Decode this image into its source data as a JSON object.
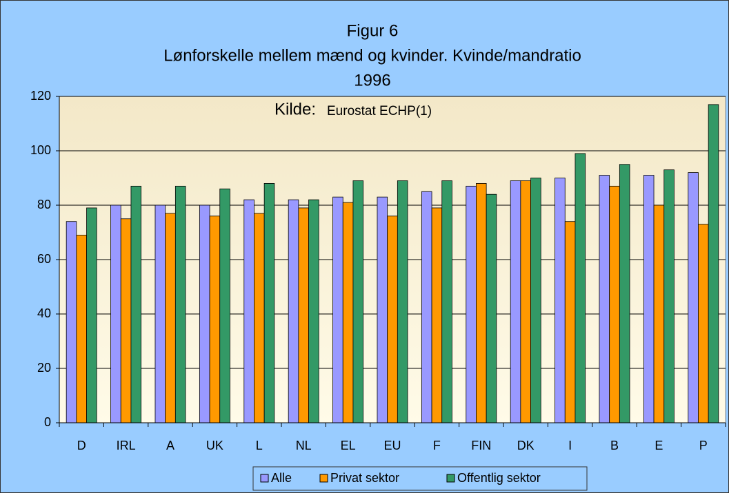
{
  "chart_data": {
    "type": "bar",
    "title": [
      "Figur 6",
      "Lønforskelle mellem mænd og kvinder. Kvinde/mandratio",
      "1996"
    ],
    "annotation": [
      "Kilde:",
      "Eurostat ECHP(1)"
    ],
    "categories": [
      "D",
      "IRL",
      "A",
      "UK",
      "L",
      "NL",
      "EL",
      "EU",
      "F",
      "FIN",
      "DK",
      "I",
      "B",
      "E",
      "P"
    ],
    "series": [
      {
        "name": "Alle",
        "color": "#9999ff",
        "values": [
          74,
          80,
          80,
          80,
          82,
          82,
          83,
          83,
          85,
          87,
          89,
          90,
          91,
          91,
          92
        ]
      },
      {
        "name": "Privat sektor",
        "color": "#ff9900",
        "values": [
          69,
          75,
          77,
          76,
          77,
          79,
          81,
          76,
          79,
          88,
          89,
          74,
          87,
          80,
          73
        ]
      },
      {
        "name": "Offentlig sektor",
        "color": "#339966",
        "values": [
          79,
          87,
          87,
          86,
          88,
          82,
          89,
          89,
          89,
          84,
          90,
          99,
          95,
          93,
          117
        ]
      }
    ],
    "ylim": [
      0,
      120
    ],
    "yticks": [
      0,
      20,
      40,
      60,
      80,
      100,
      120
    ],
    "grid": true,
    "legend": "bottom"
  }
}
